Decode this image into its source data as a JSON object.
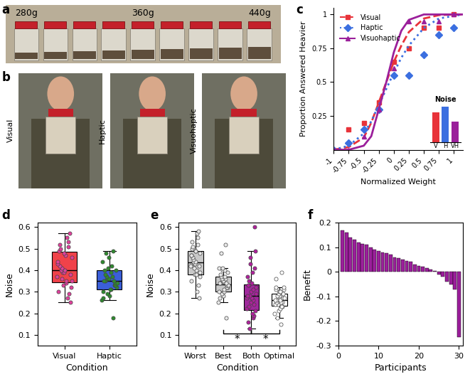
{
  "photo_panels": [
    {
      "panel_label": "a",
      "labels": [
        "280g",
        "360g",
        "440g"
      ]
    },
    {
      "panel_label": "b",
      "labels": [
        "Visual",
        "Haptic",
        "Visuohaptic"
      ]
    }
  ],
  "chart_data": [
    {
      "type": "line",
      "panel_label": "c",
      "xlabel": "Normalized Weight",
      "ylabel": "Proportion Answered Heavier",
      "xlim": [
        -1,
        1.15
      ],
      "ylim": [
        0,
        1.05
      ],
      "xticks": [
        -1,
        -0.75,
        -0.5,
        -0.25,
        0,
        0.25,
        0.5,
        0.75,
        1
      ],
      "yticks": [
        0.25,
        0.5,
        0.75,
        1
      ],
      "legend": "upper left",
      "series": [
        {
          "name": "Visual",
          "color": "#e8333a",
          "marker": "square",
          "line_style": "dashed",
          "x": [
            -1,
            -0.75,
            -0.5,
            -0.25,
            0,
            0.25,
            0.5,
            0.75,
            1
          ],
          "values": [
            0,
            0.15,
            0.2,
            0.35,
            0.65,
            0.75,
            0.9,
            0.9,
            1
          ],
          "curve_x": [
            -1,
            -0.75,
            -0.5,
            -0.375,
            -0.25,
            -0.125,
            0,
            0.125,
            0.25,
            0.5,
            0.75,
            1,
            1.15
          ],
          "curve_values": [
            0,
            0.02,
            0.09,
            0.2,
            0.35,
            0.5,
            0.65,
            0.77,
            0.87,
            0.97,
            0.995,
            1,
            1
          ]
        },
        {
          "name": "Haptic",
          "color": "#3b6fe0",
          "marker": "diamond",
          "line_style": "dotted",
          "x": [
            -1,
            -0.75,
            -0.5,
            -0.25,
            0,
            0.25,
            0.5,
            0.75,
            1
          ],
          "values": [
            0,
            0.05,
            0.15,
            0.3,
            0.55,
            0.55,
            0.7,
            0.85,
            0.9
          ],
          "curve_x": [
            -1,
            -0.75,
            -0.5,
            -0.375,
            -0.25,
            -0.125,
            0,
            0.125,
            0.25,
            0.5,
            0.75,
            1,
            1.15
          ],
          "curve_values": [
            0,
            0.03,
            0.12,
            0.21,
            0.33,
            0.45,
            0.57,
            0.68,
            0.77,
            0.9,
            0.97,
            0.99,
            1
          ]
        },
        {
          "name": "Visuohaptic",
          "color": "#9b1f9b",
          "marker": "triangle",
          "line_style": "solid",
          "x": [
            -1,
            -0.75,
            -0.5,
            -0.25,
            0,
            0.25,
            0.5,
            0.75,
            1
          ],
          "values": [
            0,
            0,
            0.1,
            0.3,
            0.6,
            0.95,
            0.95,
            0.95,
            1
          ],
          "curve_x": [
            -1,
            -0.75,
            -0.5,
            -0.375,
            -0.25,
            -0.125,
            0,
            0.125,
            0.25,
            0.5,
            0.75,
            1,
            1.15
          ],
          "curve_values": [
            0,
            0,
            0.03,
            0.1,
            0.3,
            0.5,
            0.72,
            0.88,
            0.96,
            1,
            1,
            1,
            1
          ]
        }
      ],
      "inset": {
        "type": "bar",
        "title": "Noise",
        "categories": [
          "V",
          "H",
          "VH"
        ],
        "values": [
          0.31,
          0.37,
          0.21
        ],
        "colors": [
          "#e8333a",
          "#3b6fe0",
          "#9b1f9b"
        ],
        "ylim": [
          0,
          0.4
        ],
        "tick_labels": "x"
      }
    },
    {
      "type": "box",
      "panel_label": "d",
      "xlabel": "Condition",
      "ylabel": "Noise",
      "categories": [
        "Visual",
        "Haptic"
      ],
      "ylim": [
        0.05,
        0.62
      ],
      "yticks": [
        0.1,
        0.2,
        0.3,
        0.4,
        0.5,
        0.6
      ],
      "colors": [
        "#f0424a",
        "#3b5fd9"
      ],
      "boxes": [
        {
          "low": 0.25,
          "q1": 0.345,
          "median": 0.4,
          "q3": 0.485,
          "high": 0.57
        },
        {
          "low": 0.26,
          "q1": 0.31,
          "median": 0.35,
          "q3": 0.4,
          "high": 0.49
        }
      ],
      "points": [
        [
          0.25,
          0.27,
          0.29,
          0.3,
          0.32,
          0.33,
          0.34,
          0.35,
          0.35,
          0.36,
          0.37,
          0.38,
          0.39,
          0.39,
          0.4,
          0.4,
          0.41,
          0.42,
          0.43,
          0.44,
          0.46,
          0.47,
          0.48,
          0.49,
          0.5,
          0.51,
          0.52,
          0.53,
          0.55,
          0.57
        ],
        [
          0.18,
          0.26,
          0.27,
          0.28,
          0.29,
          0.3,
          0.31,
          0.31,
          0.32,
          0.33,
          0.33,
          0.34,
          0.34,
          0.35,
          0.35,
          0.35,
          0.36,
          0.36,
          0.37,
          0.37,
          0.38,
          0.39,
          0.4,
          0.4,
          0.41,
          0.42,
          0.44,
          0.46,
          0.48,
          0.49
        ]
      ]
    },
    {
      "type": "box",
      "panel_label": "e",
      "xlabel": "Condition",
      "ylabel": "Noise",
      "categories": [
        "Worst",
        "Best",
        "Both",
        "Optimal"
      ],
      "ylim": [
        0.05,
        0.62
      ],
      "yticks": [
        0.1,
        0.2,
        0.3,
        0.4,
        0.5,
        0.6
      ],
      "colors": [
        "#c8c8c8",
        "#c8c8c8",
        "#a0289c",
        "#ffffff"
      ],
      "boxes": [
        {
          "low": 0.27,
          "q1": 0.38,
          "median": 0.435,
          "q3": 0.49,
          "high": 0.58
        },
        {
          "low": 0.25,
          "q1": 0.3,
          "median": 0.335,
          "q3": 0.37,
          "high": 0.41
        },
        {
          "low": 0.13,
          "q1": 0.215,
          "median": 0.28,
          "q3": 0.335,
          "high": 0.49
        },
        {
          "low": 0.18,
          "q1": 0.235,
          "median": 0.26,
          "q3": 0.29,
          "high": 0.32
        }
      ],
      "points": [
        [
          0.27,
          0.3,
          0.33,
          0.35,
          0.37,
          0.38,
          0.38,
          0.39,
          0.4,
          0.41,
          0.42,
          0.42,
          0.43,
          0.43,
          0.44,
          0.44,
          0.45,
          0.46,
          0.47,
          0.47,
          0.48,
          0.49,
          0.49,
          0.5,
          0.51,
          0.52,
          0.53,
          0.55,
          0.57,
          0.58
        ],
        [
          0.18,
          0.25,
          0.27,
          0.28,
          0.29,
          0.3,
          0.3,
          0.31,
          0.32,
          0.32,
          0.33,
          0.33,
          0.33,
          0.34,
          0.34,
          0.34,
          0.35,
          0.35,
          0.36,
          0.36,
          0.37,
          0.37,
          0.38,
          0.39,
          0.4,
          0.4,
          0.41,
          0.41,
          0.48,
          0.52
        ],
        [
          0.13,
          0.16,
          0.18,
          0.19,
          0.2,
          0.21,
          0.22,
          0.23,
          0.24,
          0.25,
          0.26,
          0.27,
          0.27,
          0.28,
          0.28,
          0.29,
          0.3,
          0.31,
          0.32,
          0.33,
          0.33,
          0.34,
          0.35,
          0.37,
          0.39,
          0.41,
          0.43,
          0.46,
          0.49,
          0.6
        ],
        [
          0.15,
          0.18,
          0.2,
          0.21,
          0.22,
          0.23,
          0.23,
          0.24,
          0.24,
          0.25,
          0.25,
          0.25,
          0.26,
          0.26,
          0.26,
          0.27,
          0.27,
          0.28,
          0.28,
          0.28,
          0.29,
          0.29,
          0.3,
          0.3,
          0.31,
          0.31,
          0.32,
          0.32,
          0.36,
          0.39
        ]
      ],
      "annotations": [
        {
          "text": "*",
          "between": [
            1,
            2
          ]
        },
        {
          "text": "*",
          "between": [
            2,
            3
          ]
        }
      ]
    },
    {
      "type": "bar",
      "panel_label": "f",
      "xlabel": "Participants",
      "ylabel": "Benefit",
      "x": [
        1,
        2,
        3,
        4,
        5,
        6,
        7,
        8,
        9,
        10,
        11,
        12,
        13,
        14,
        15,
        16,
        17,
        18,
        19,
        20,
        21,
        22,
        23,
        24,
        25,
        26,
        27,
        28,
        29,
        30
      ],
      "values": [
        0.17,
        0.16,
        0.14,
        0.13,
        0.12,
        0.115,
        0.11,
        0.1,
        0.09,
        0.085,
        0.08,
        0.075,
        0.07,
        0.06,
        0.055,
        0.05,
        0.045,
        0.04,
        0.03,
        0.025,
        0.02,
        0.015,
        0.01,
        0.005,
        -0.01,
        -0.02,
        -0.04,
        -0.05,
        -0.07,
        -0.265
      ],
      "color": "#9b1f9b",
      "xlim": [
        0,
        31
      ],
      "ylim": [
        -0.3,
        0.2
      ],
      "xticks": [
        0,
        10,
        20,
        30
      ],
      "yticks": [
        -0.3,
        -0.2,
        -0.1,
        0,
        0.1,
        0.2
      ]
    }
  ]
}
